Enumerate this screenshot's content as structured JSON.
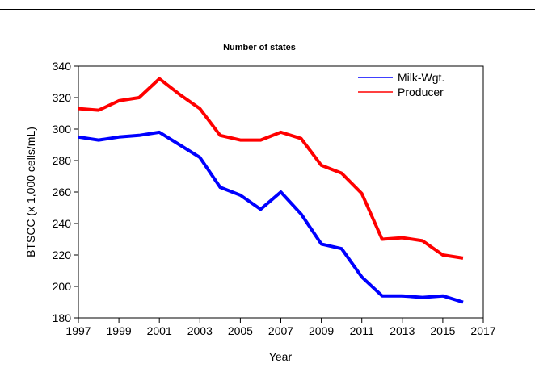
{
  "chart_data": {
    "type": "line",
    "title": "Number of states",
    "xlabel": "Year",
    "ylabel": "BTSCC (x 1,000 cells/mL)",
    "xlim": [
      1997,
      2017
    ],
    "ylim": [
      180,
      340
    ],
    "x_ticks": [
      1997,
      1999,
      2001,
      2003,
      2005,
      2007,
      2009,
      2011,
      2013,
      2015,
      2017
    ],
    "y_ticks": [
      180,
      200,
      220,
      240,
      260,
      280,
      300,
      320,
      340
    ],
    "grid": false,
    "legend_position": "top-right",
    "x": [
      1997,
      1998,
      1999,
      2000,
      2001,
      2002,
      2003,
      2004,
      2005,
      2006,
      2007,
      2008,
      2009,
      2010,
      2011,
      2012,
      2013,
      2014,
      2015,
      2016
    ],
    "series": [
      {
        "name": "Milk-Wgt.",
        "color": "#0000ff",
        "values": [
          295,
          293,
          295,
          296,
          298,
          290,
          282,
          263,
          258,
          249,
          260,
          246,
          227,
          224,
          206,
          194,
          194,
          193,
          194,
          190
        ]
      },
      {
        "name": "Producer",
        "color": "#ff0000",
        "values": [
          313,
          312,
          318,
          320,
          332,
          322,
          313,
          296,
          293,
          293,
          298,
          294,
          277,
          272,
          259,
          230,
          231,
          229,
          220,
          218
        ]
      }
    ]
  }
}
